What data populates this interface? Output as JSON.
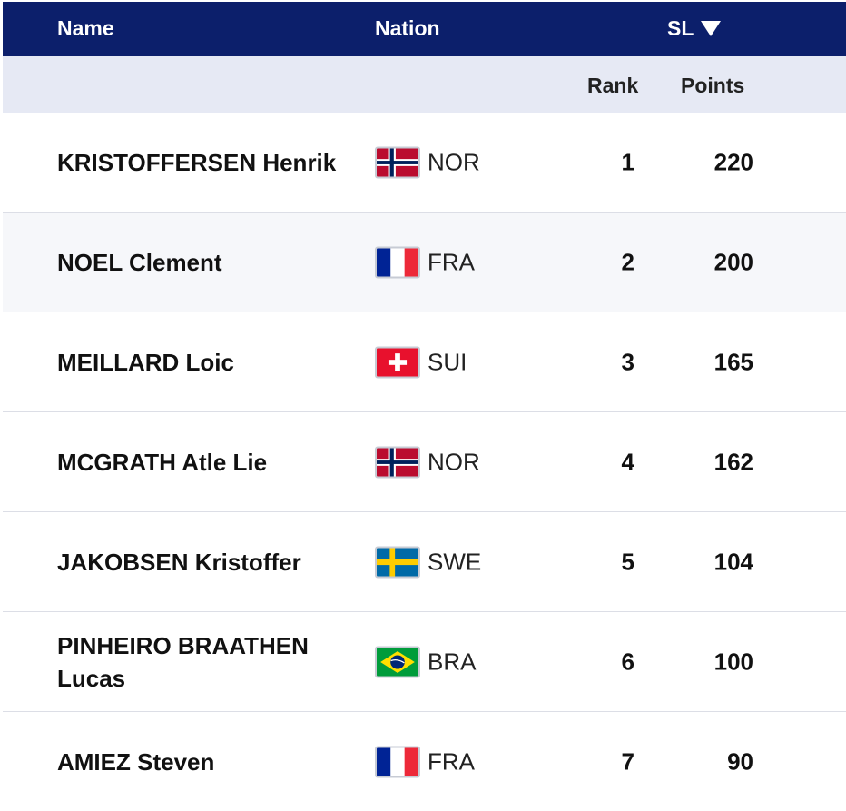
{
  "header": {
    "name_label": "Name",
    "nation_label": "Nation",
    "discipline_label": "SL",
    "discipline_sort_icon": "triangle-down-icon",
    "background_color": "#0c1f6b"
  },
  "subheader": {
    "rank_label": "Rank",
    "points_label": "Points",
    "background_color": "#e6e9f4"
  },
  "rows": [
    {
      "name": "KRISTOFFERSEN Henrik",
      "nation": "NOR",
      "flag": "norway-flag-icon",
      "rank": "1",
      "points": "220"
    },
    {
      "name": "NOEL Clement",
      "nation": "FRA",
      "flag": "france-flag-icon",
      "rank": "2",
      "points": "200"
    },
    {
      "name": "MEILLARD Loic",
      "nation": "SUI",
      "flag": "switzerland-flag-icon",
      "rank": "3",
      "points": "165"
    },
    {
      "name": "MCGRATH Atle Lie",
      "nation": "NOR",
      "flag": "norway-flag-icon",
      "rank": "4",
      "points": "162"
    },
    {
      "name": "JAKOBSEN Kristoffer",
      "nation": "SWE",
      "flag": "sweden-flag-icon",
      "rank": "5",
      "points": "104"
    },
    {
      "name": "PINHEIRO BRAATHEN Lucas",
      "nation": "BRA",
      "flag": "brazil-flag-icon",
      "rank": "6",
      "points": "100"
    },
    {
      "name": "AMIEZ Steven",
      "nation": "FRA",
      "flag": "france-flag-icon",
      "rank": "7",
      "points": "90"
    }
  ]
}
